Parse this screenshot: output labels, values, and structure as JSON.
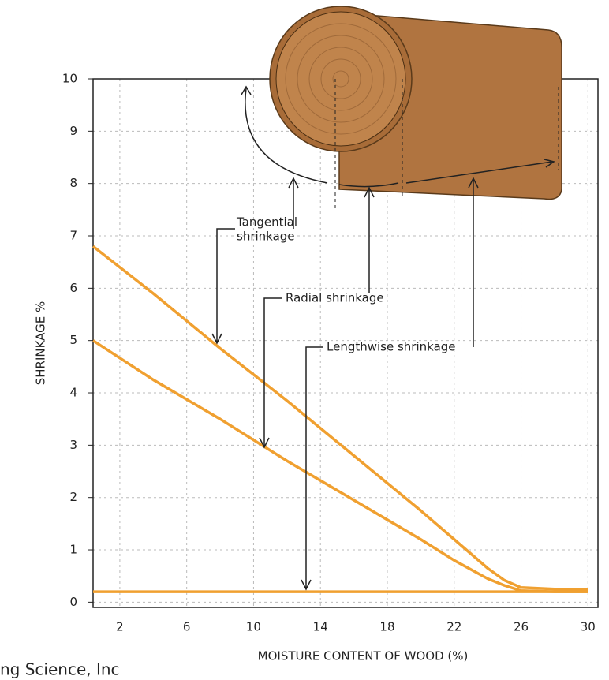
{
  "chart_data": {
    "type": "line",
    "y_label": "SHRINKAGE %",
    "x_label": "MOISTURE CONTENT OF WOOD (%)",
    "credit": "ng Science, Inc",
    "annotations": [
      "Tangential",
      "shrinkage",
      "Radial shrinkage",
      "Lengthwise shrinkage"
    ],
    "x": [
      0.4,
      4,
      8,
      12,
      16,
      20,
      22,
      24,
      25,
      26,
      28,
      30
    ],
    "series": [
      {
        "color": "#f0a030",
        "values": [
          6.8,
          5.9,
          4.85,
          3.85,
          2.8,
          1.75,
          1.2,
          0.65,
          0.42,
          0.28,
          0.25,
          0.25
        ]
      },
      {
        "color": "#f0a030",
        "values": [
          5.0,
          4.25,
          3.5,
          2.7,
          1.95,
          1.2,
          0.8,
          0.45,
          0.32,
          0.22,
          0.2,
          0.2
        ]
      },
      {
        "color": "#f0a030",
        "values": [
          0.2,
          0.2,
          0.2,
          0.2,
          0.2,
          0.2,
          0.2,
          0.2,
          0.2,
          0.2,
          0.2,
          0.2
        ]
      }
    ],
    "xlim": [
      0.4,
      30.6
    ],
    "ylim": [
      -0.1,
      10
    ],
    "xticks": [
      2,
      6,
      10,
      14,
      18,
      22,
      26,
      30
    ],
    "yticks": [
      0,
      1,
      2,
      3,
      4,
      5,
      6,
      7,
      8,
      9,
      10
    ],
    "grid": true
  }
}
